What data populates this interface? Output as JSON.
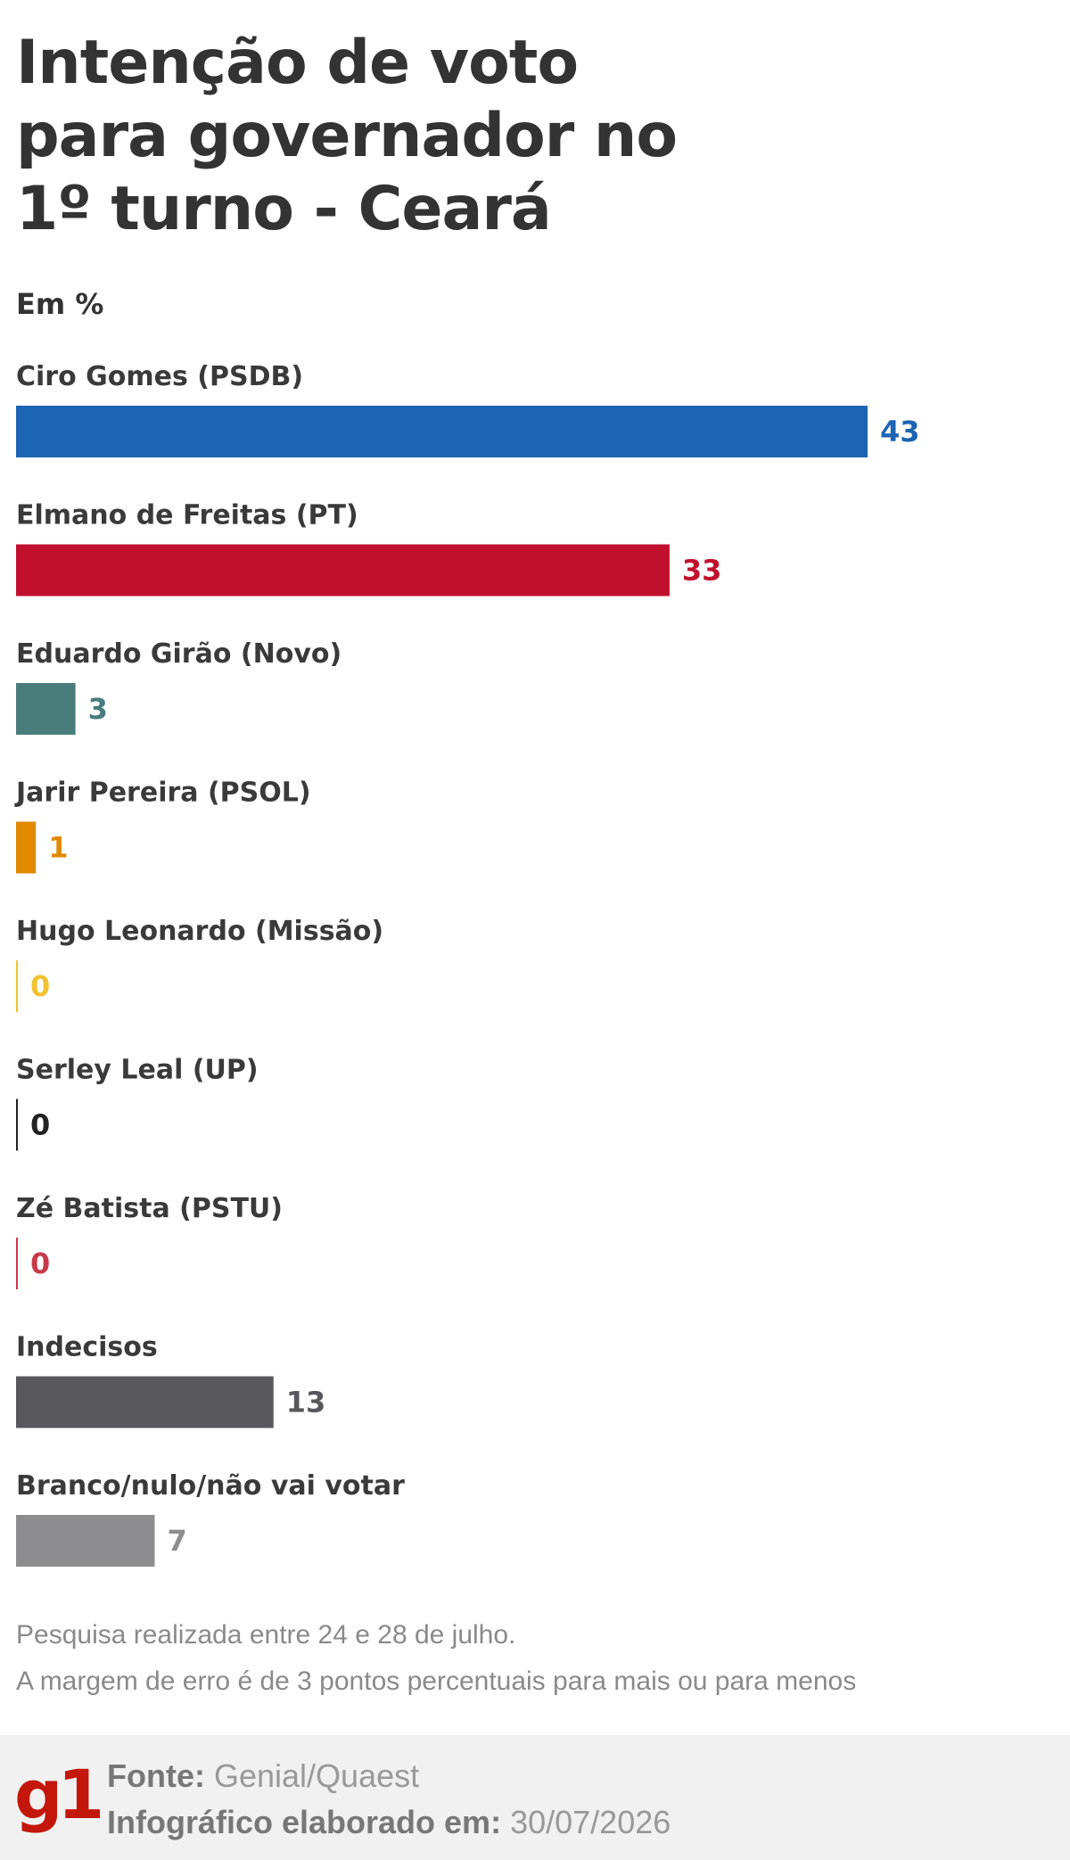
{
  "title_lines": [
    "Intenção de voto",
    "para governador no",
    "1º turno - Ceará"
  ],
  "unit": "Em %",
  "chart_data": {
    "type": "bar",
    "orientation": "horizontal",
    "title": "Intenção de voto para governador no 1º turno - Ceará",
    "unit": "Em %",
    "categories": [
      "Ciro Gomes (PSDB)",
      "Elmano de Freitas (PT)",
      "Eduardo Girão (Novo)",
      "Jarir Pereira (PSOL)",
      "Hugo Leonardo (Missão)",
      "Serley Leal (UP)",
      "Zé Batista (PSTU)",
      "Indecisos",
      "Branco/nulo/não vai votar"
    ],
    "values": [
      43,
      33,
      3,
      1,
      0,
      0,
      0,
      13,
      7
    ],
    "colors": [
      "#1d64b3",
      "#c0102e",
      "#4a7c7c",
      "#e08a00",
      "#f2c230",
      "#222222",
      "#c83a4a",
      "#58585c",
      "#8d8d90"
    ],
    "label_colors": [
      "#1d64b3",
      "#c0102e",
      "#4a7c7c",
      "#e08a00",
      "#f2c230",
      "#222222",
      "#c83a4a",
      "#58585c",
      "#8d8d90"
    ],
    "xlim": [
      0,
      43
    ],
    "grid": false
  },
  "notes": [
    "Pesquisa realizada entre 24 e 28 de julho.",
    "A margem de erro é de 3 pontos percentuais para mais ou para menos"
  ],
  "footer": {
    "logo": "g1",
    "source_label": "Fonte:",
    "source_value": "Genial/Quaest",
    "date_label": "Infográfico elaborado em:",
    "date_value": "30/07/2026"
  }
}
